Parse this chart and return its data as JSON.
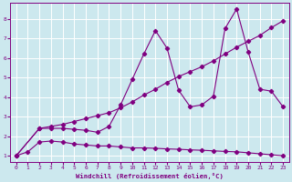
{
  "xlabel": "Windchill (Refroidissement éolien,°C)",
  "background_color": "#cce8ee",
  "grid_color": "#ffffff",
  "line_color": "#800080",
  "xlim": [
    -0.5,
    23.5
  ],
  "ylim": [
    0.7,
    8.8
  ],
  "xticks": [
    0,
    1,
    2,
    3,
    4,
    5,
    6,
    7,
    8,
    9,
    10,
    11,
    12,
    13,
    14,
    15,
    16,
    17,
    18,
    19,
    20,
    21,
    22,
    23
  ],
  "yticks": [
    1,
    2,
    3,
    4,
    5,
    6,
    7,
    8
  ],
  "line1_x": [
    0,
    1,
    2,
    3,
    4,
    5,
    6,
    7,
    8,
    9,
    10,
    11,
    12,
    13,
    14,
    15,
    16,
    17,
    18,
    19,
    20,
    21,
    22,
    23
  ],
  "line1_y": [
    1.0,
    1.2,
    1.7,
    1.75,
    1.7,
    1.6,
    1.55,
    1.5,
    1.5,
    1.45,
    1.4,
    1.4,
    1.38,
    1.35,
    1.33,
    1.3,
    1.28,
    1.25,
    1.22,
    1.2,
    1.15,
    1.1,
    1.05,
    1.0
  ],
  "line2_x": [
    0,
    2,
    3,
    4,
    5,
    6,
    7,
    8,
    9,
    10,
    11,
    12,
    13,
    14,
    15,
    16,
    17,
    18,
    19,
    20,
    21,
    22,
    23
  ],
  "line2_y": [
    1.0,
    2.4,
    2.4,
    2.4,
    2.35,
    2.3,
    2.2,
    2.5,
    3.6,
    4.9,
    6.2,
    7.4,
    6.5,
    4.35,
    3.5,
    3.6,
    4.05,
    7.5,
    8.5,
    6.3,
    4.4,
    4.3,
    3.5
  ],
  "line3_x": [
    0,
    2,
    3,
    4,
    5,
    6,
    7,
    8,
    9,
    10,
    11,
    12,
    13,
    14,
    15,
    16,
    17,
    18,
    19,
    20,
    21,
    22,
    23
  ],
  "line3_y": [
    1.0,
    2.4,
    2.5,
    2.6,
    2.75,
    2.9,
    3.05,
    3.2,
    3.45,
    3.75,
    4.1,
    4.4,
    4.75,
    5.05,
    5.3,
    5.55,
    5.85,
    6.2,
    6.55,
    6.85,
    7.15,
    7.55,
    7.9
  ],
  "marker": "D",
  "markersize": 2.2,
  "linewidth": 0.8,
  "tick_fontsize": 4.5,
  "xlabel_fontsize": 5.2
}
